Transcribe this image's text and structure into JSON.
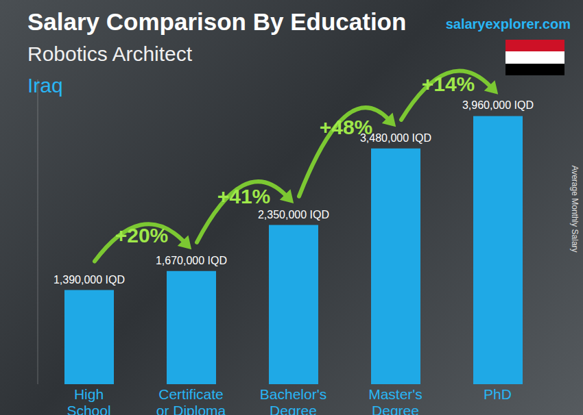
{
  "chart_data": {
    "type": "bar",
    "title": "Salary Comparison By Education",
    "subtitle": "Robotics Architect",
    "country": "Iraq",
    "source": "salaryexplorer.com",
    "y_label": "Average Monthly Salary",
    "categories": [
      "High School",
      "Certificate or Diploma",
      "Bachelor's Degree",
      "Master's Degree",
      "PhD"
    ],
    "values": [
      1390000,
      1670000,
      2350000,
      3480000,
      3960000
    ],
    "value_labels": [
      "1,390,000 IQD",
      "1,670,000 IQD",
      "2,350,000 IQD",
      "3,480,000 IQD",
      "3,960,000 IQD"
    ],
    "annotations": [
      "+20%",
      "+41%",
      "+48%",
      "+14%"
    ],
    "color": "#1fa9e6",
    "ylim": [
      0,
      4500000
    ],
    "grid": false,
    "data_labels": true,
    "tick_labels": "x"
  }
}
